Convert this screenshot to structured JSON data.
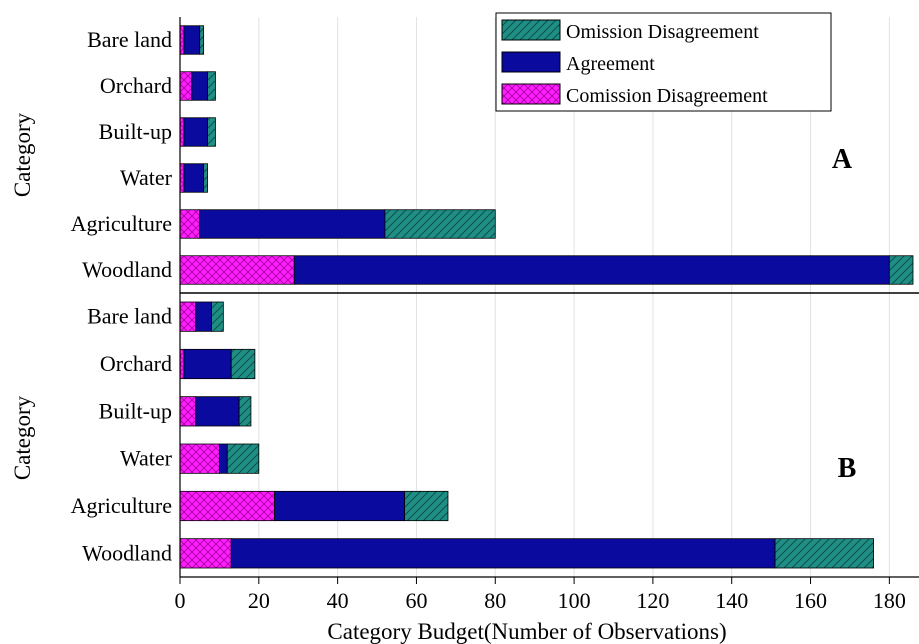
{
  "colors": {
    "omission": "#1f8f86",
    "agreement": "#0a0a9e",
    "commission": "#ff1eff",
    "grid": "#e2e2e2",
    "axis": "#000000"
  },
  "legend": {
    "omission": "Omission Disagreement",
    "agreement": "Agreement",
    "commission": "Comission Disagreement"
  },
  "chart_data": [
    {
      "type": "bar",
      "orientation": "horizontal",
      "stacked": true,
      "panel": "A",
      "ylabel": "Category",
      "xlim": [
        0,
        186
      ],
      "categories": [
        "Bare land",
        "Orchard",
        "Built-up",
        "Water",
        "Agriculture",
        "Woodland"
      ],
      "series": [
        {
          "name": "Comission Disagreement",
          "key": "commission",
          "values": [
            1,
            3,
            1,
            1,
            5,
            29
          ]
        },
        {
          "name": "Agreement",
          "key": "agreement",
          "values": [
            4,
            4,
            6,
            5,
            47,
            151
          ]
        },
        {
          "name": "Omission Disagreement",
          "key": "omission",
          "values": [
            1,
            2,
            2,
            1,
            28,
            6
          ]
        }
      ]
    },
    {
      "type": "bar",
      "orientation": "horizontal",
      "stacked": true,
      "panel": "B",
      "ylabel": "Category",
      "xlabel": "Category Budget(Number of Observations)",
      "xlim": [
        0,
        186
      ],
      "xticks": [
        "0",
        "20",
        "40",
        "60",
        "80",
        "100",
        "120",
        "140",
        "160",
        "180"
      ],
      "categories": [
        "Bare land",
        "Orchard",
        "Built-up",
        "Water",
        "Agriculture",
        "Woodland"
      ],
      "series": [
        {
          "name": "Comission Disagreement",
          "key": "commission",
          "values": [
            4,
            1,
            4,
            10,
            24,
            13
          ]
        },
        {
          "name": "Agreement",
          "key": "agreement",
          "values": [
            4,
            12,
            11,
            2,
            33,
            138
          ]
        },
        {
          "name": "Omission Disagreement",
          "key": "omission",
          "values": [
            3,
            6,
            3,
            8,
            11,
            25
          ]
        }
      ]
    }
  ]
}
